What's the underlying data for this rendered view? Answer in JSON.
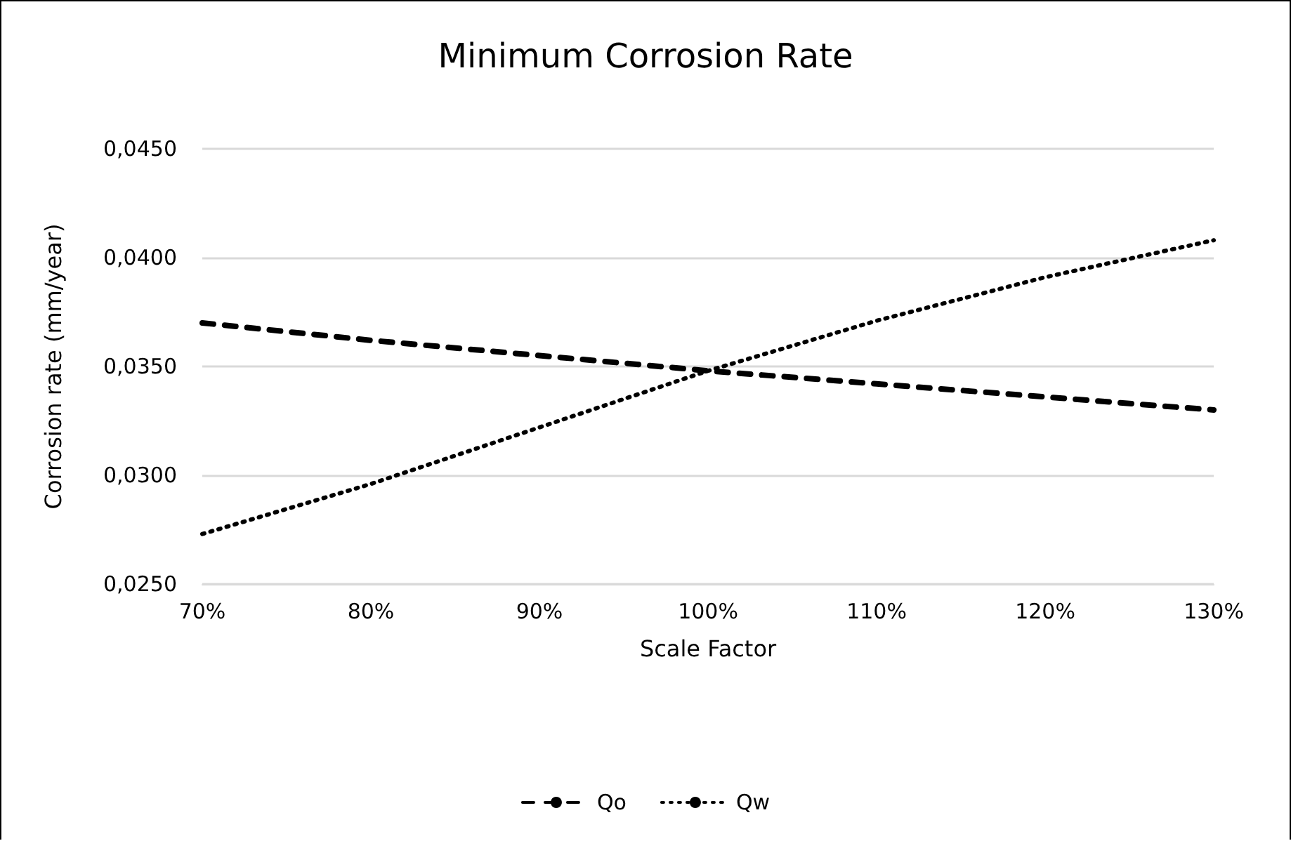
{
  "chart_data": {
    "type": "line",
    "title": "Minimum Corrosion Rate",
    "xlabel": "Scale Factor",
    "ylabel": "Corrosion rate (mm/year)",
    "x": [
      70,
      80,
      90,
      100,
      110,
      120,
      130
    ],
    "series": [
      {
        "name": "Qo",
        "color": "#000000",
        "line_style": "dashed",
        "values": [
          0.037,
          0.0362,
          0.0355,
          0.0348,
          0.0342,
          0.0336,
          0.033
        ]
      },
      {
        "name": "Qw",
        "color": "#000000",
        "line_style": "dotted",
        "values": [
          0.0273,
          0.0296,
          0.0322,
          0.0348,
          0.0371,
          0.0391,
          0.0408
        ]
      }
    ],
    "xlim": [
      70,
      130
    ],
    "xticks": [
      {
        "value": 70,
        "label": "70%"
      },
      {
        "value": 80,
        "label": "80%"
      },
      {
        "value": 90,
        "label": "90%"
      },
      {
        "value": 100,
        "label": "100%"
      },
      {
        "value": 110,
        "label": "110%"
      },
      {
        "value": 120,
        "label": "120%"
      },
      {
        "value": 130,
        "label": "130%"
      }
    ],
    "ylim": [
      0.025,
      0.045
    ],
    "yticks": [
      {
        "value": 0.025,
        "label": "0,0250"
      },
      {
        "value": 0.03,
        "label": "0,0300"
      },
      {
        "value": 0.035,
        "label": "0,0350"
      },
      {
        "value": 0.04,
        "label": "0,0400"
      },
      {
        "value": 0.045,
        "label": "0,0450"
      }
    ],
    "grid": "y",
    "legend": "bottom",
    "marker": "none"
  }
}
